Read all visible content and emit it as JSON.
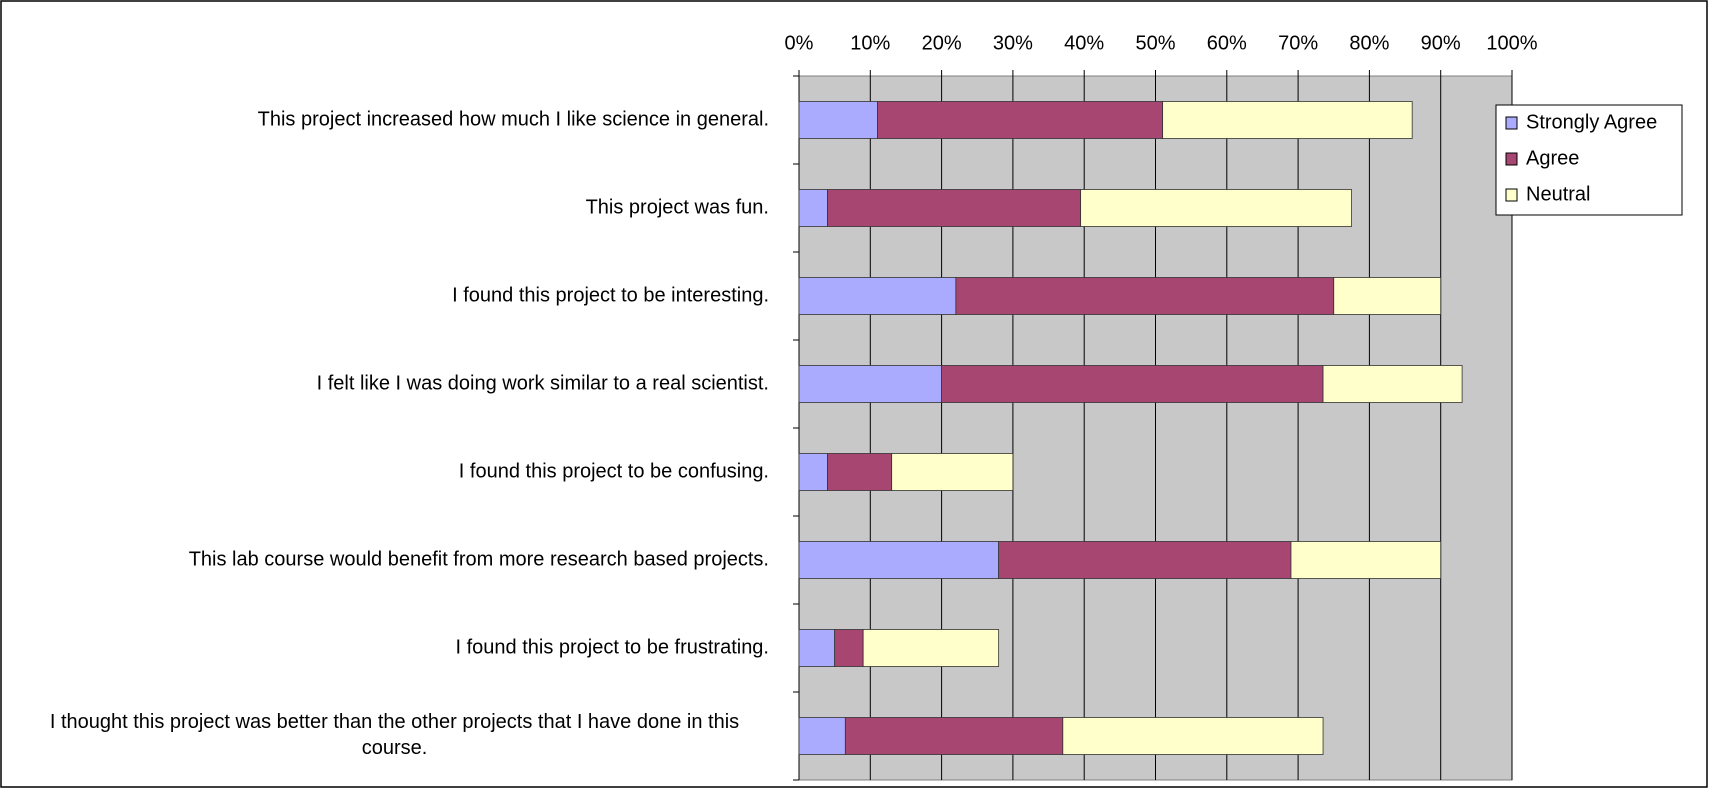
{
  "chart_data": {
    "type": "stacked-barh",
    "categories": [
      "This project increased how much I like science in general.",
      "This project was fun.",
      "I found this project to be interesting.",
      "I felt like I was doing work similar to a real scientist.",
      "I found this project to be confusing.",
      "This lab course would benefit from more research based projects.",
      "I found this project to be frustrating.",
      "I thought this project was better than the other projects that I have done in this course."
    ],
    "series": [
      {
        "name": "Strongly Agree",
        "color": "#aaaaff",
        "values": [
          11,
          4,
          22,
          20,
          4,
          28,
          5,
          6.5
        ]
      },
      {
        "name": "Agree",
        "color": "#a84672",
        "values": [
          40,
          35.5,
          53,
          53.5,
          9,
          41,
          4,
          30.5
        ]
      },
      {
        "name": "Neutral",
        "color": "#ffffcc",
        "values": [
          35,
          38,
          15,
          19.5,
          17,
          21,
          19,
          36.5
        ]
      }
    ],
    "xlim": [
      0,
      100
    ],
    "xticks": [
      {
        "value": 0,
        "label": "0%"
      },
      {
        "value": 10,
        "label": "10%"
      },
      {
        "value": 20,
        "label": "20%"
      },
      {
        "value": 30,
        "label": "30%"
      },
      {
        "value": 40,
        "label": "40%"
      },
      {
        "value": 50,
        "label": "50%"
      },
      {
        "value": 60,
        "label": "60%"
      },
      {
        "value": 70,
        "label": "70%"
      },
      {
        "value": 80,
        "label": "80%"
      },
      {
        "value": 90,
        "label": "90%"
      },
      {
        "value": 100,
        "label": "100%"
      }
    ],
    "grid": true,
    "legend": "top-right"
  }
}
